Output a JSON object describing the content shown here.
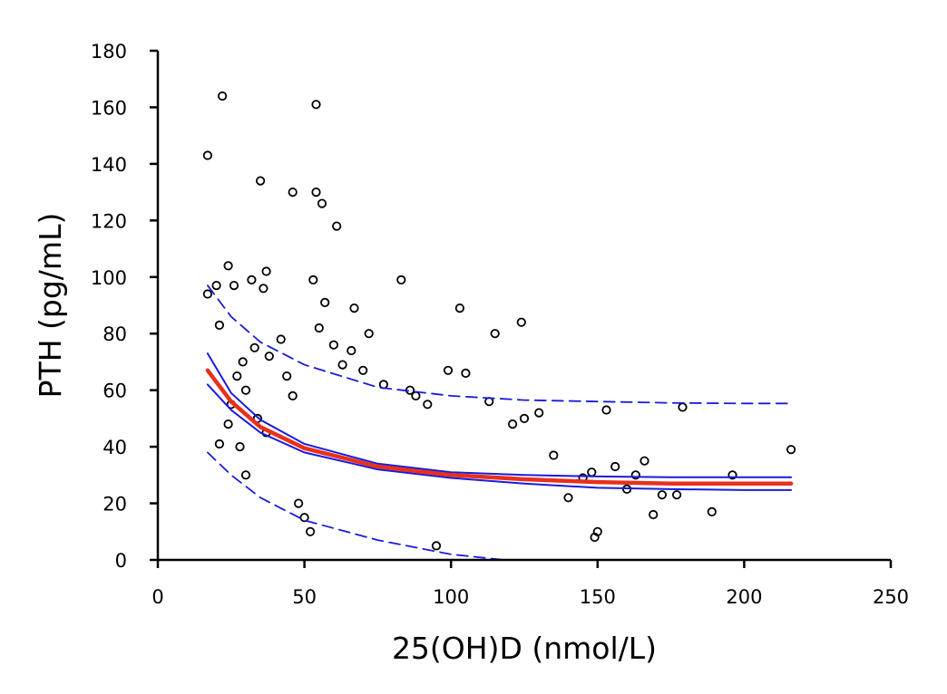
{
  "chart_data": {
    "type": "scatter",
    "xlabel": "25(OH)D (nmol/L)",
    "ylabel": "PTH (pg/mL)",
    "xlim": [
      0,
      250
    ],
    "ylim": [
      0,
      180
    ],
    "xticks": [
      0,
      50,
      100,
      150,
      200,
      250
    ],
    "yticks": [
      0,
      20,
      40,
      60,
      80,
      100,
      120,
      140,
      160,
      180
    ],
    "grid": false,
    "colors": {
      "points": "#000000",
      "fit": "#e8301c",
      "ci": "#1a1adc"
    },
    "series": [
      {
        "kind": "points",
        "x": [
          17,
          22,
          35,
          46,
          54,
          54,
          56,
          61,
          17,
          20,
          21,
          24,
          26,
          32,
          36,
          37,
          53,
          57,
          67,
          83,
          103,
          115,
          124,
          153,
          179,
          216,
          196,
          189,
          172,
          169,
          163,
          150,
          149,
          95,
          52,
          50,
          48,
          37,
          34,
          30,
          25,
          24,
          21,
          27,
          29,
          28,
          30,
          33,
          38,
          42,
          44,
          46,
          55,
          60,
          63,
          66,
          70,
          72,
          77,
          86,
          88,
          92,
          99,
          105,
          113,
          121,
          125,
          130,
          135,
          140,
          145,
          148,
          156,
          160,
          166,
          177
        ],
        "y": [
          143,
          164,
          134,
          130,
          161,
          130,
          126,
          118,
          94,
          97,
          83,
          104,
          97,
          99,
          96,
          102,
          99,
          91,
          89,
          99,
          89,
          80,
          84,
          53,
          54,
          39,
          30,
          17,
          23,
          16,
          30,
          10,
          8,
          5,
          10,
          15,
          20,
          45,
          50,
          60,
          55,
          48,
          41,
          65,
          70,
          40,
          30,
          75,
          72,
          78,
          65,
          58,
          82,
          76,
          69,
          74,
          67,
          80,
          62,
          60,
          58,
          55,
          67,
          66,
          56,
          48,
          50,
          52,
          37,
          22,
          29,
          31,
          33,
          25,
          35,
          23
        ]
      },
      {
        "kind": "fit",
        "x": [
          17,
          25,
          35,
          50,
          75,
          100,
          125,
          150,
          175,
          200,
          216
        ],
        "y": [
          67,
          56,
          47,
          39.5,
          33,
          30,
          28.5,
          27.5,
          27,
          27,
          27
        ]
      },
      {
        "kind": "ci-upper",
        "x": [
          17,
          25,
          35,
          50,
          75,
          100,
          125,
          150,
          175,
          200,
          216
        ],
        "y": [
          73,
          59,
          49.5,
          41,
          34,
          31,
          30,
          29.5,
          29.2,
          29.2,
          29.2
        ]
      },
      {
        "kind": "ci-lower",
        "x": [
          17,
          25,
          35,
          50,
          75,
          100,
          125,
          150,
          175,
          200,
          216
        ],
        "y": [
          62,
          53,
          45,
          38,
          32,
          29,
          27,
          25.5,
          25,
          24.7,
          24.7
        ]
      },
      {
        "kind": "pi-upper",
        "x": [
          17,
          25,
          35,
          50,
          75,
          100,
          125,
          150,
          175,
          200,
          216
        ],
        "y": [
          97,
          86,
          77,
          69,
          61,
          58,
          56.5,
          56,
          55.5,
          55.3,
          55.3
        ]
      },
      {
        "kind": "pi-lower",
        "x": [
          17,
          25,
          35,
          50,
          75,
          100,
          118,
          125
        ],
        "y": [
          38,
          30,
          22,
          14,
          7,
          2,
          0,
          0
        ]
      }
    ]
  }
}
